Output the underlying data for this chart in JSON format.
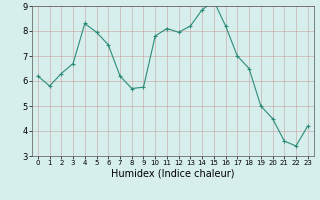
{
  "title": "",
  "xlabel": "Humidex (Indice chaleur)",
  "ylabel": "",
  "x_values": [
    0,
    1,
    2,
    3,
    4,
    5,
    6,
    7,
    8,
    9,
    10,
    11,
    12,
    13,
    14,
    15,
    16,
    17,
    18,
    19,
    20,
    21,
    22,
    23
  ],
  "y_values": [
    6.2,
    5.8,
    6.3,
    6.7,
    8.3,
    7.95,
    7.45,
    6.2,
    5.7,
    5.75,
    7.8,
    8.1,
    7.95,
    8.2,
    8.85,
    9.2,
    8.2,
    7.0,
    6.5,
    5.0,
    4.5,
    3.6,
    3.4,
    4.2
  ],
  "line_color": "#2d8b7a",
  "marker_color": "#2d8b7a",
  "bg_color": "#d6efec",
  "grid_color_major": "#b8d4d0",
  "ylim": [
    3,
    9
  ],
  "xlim": [
    -0.5,
    23.5
  ],
  "yticks": [
    3,
    4,
    5,
    6,
    7,
    8,
    9
  ],
  "xticks": [
    0,
    1,
    2,
    3,
    4,
    5,
    6,
    7,
    8,
    9,
    10,
    11,
    12,
    13,
    14,
    15,
    16,
    17,
    18,
    19,
    20,
    21,
    22,
    23
  ],
  "xlabel_fontsize": 7.0,
  "tick_fontsize_x": 5.0,
  "tick_fontsize_y": 6.0
}
